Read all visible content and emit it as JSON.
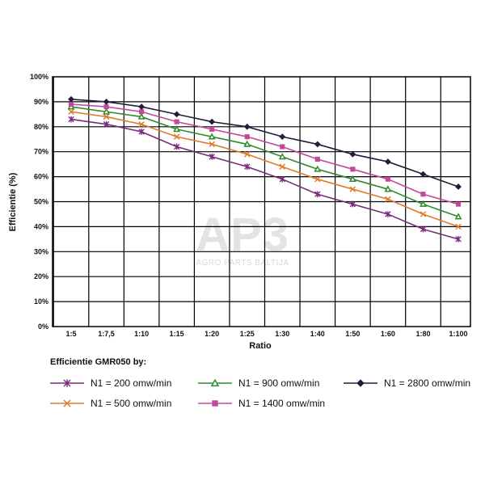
{
  "watermark": {
    "logo": "AP3",
    "tagline": "AGRO PARTS BALTIJA"
  },
  "chart_data": {
    "type": "line",
    "title": "",
    "xlabel": "Ratio",
    "ylabel": "Efficientie (%)",
    "categories": [
      "1:5",
      "1:7,5",
      "1:10",
      "1:15",
      "1:20",
      "1:25",
      "1:30",
      "1:40",
      "1:50",
      "1:60",
      "1:80",
      "1:100"
    ],
    "y_ticks": [
      "0%",
      "10%",
      "20%",
      "30%",
      "40%",
      "50%",
      "60%",
      "70%",
      "80%",
      "90%",
      "100%"
    ],
    "ylim": [
      0,
      100
    ],
    "grid": true,
    "legend": {
      "title": "Efficientie GMR050 by:",
      "placement": "bottom"
    },
    "series": [
      {
        "name": "N1 = 200 omw/min",
        "color": "#7a2a7e",
        "marker": "star",
        "values": [
          83,
          81,
          78,
          72,
          68,
          64,
          59,
          53,
          49,
          45,
          39,
          35
        ]
      },
      {
        "name": "N1 = 500 omw/min",
        "color": "#e07b2a",
        "marker": "x",
        "values": [
          86,
          84,
          81,
          76,
          73,
          69,
          64,
          59,
          55,
          51,
          45,
          40
        ]
      },
      {
        "name": "N1 = 900 omw/min",
        "color": "#2e8b2e",
        "marker": "triangle",
        "values": [
          88,
          86,
          84,
          79,
          76,
          73,
          68,
          63,
          59,
          55,
          49,
          44
        ]
      },
      {
        "name": "N1 = 1400 omw/min",
        "color": "#c2489a",
        "marker": "square",
        "values": [
          89,
          88,
          86,
          82,
          79,
          76,
          72,
          67,
          63,
          59,
          53,
          49
        ]
      },
      {
        "name": "N1 = 2800 omw/min",
        "color": "#1f1f3a",
        "marker": "diamond",
        "values": [
          91,
          90,
          88,
          85,
          82,
          80,
          76,
          73,
          69,
          66,
          61,
          56
        ]
      }
    ]
  }
}
